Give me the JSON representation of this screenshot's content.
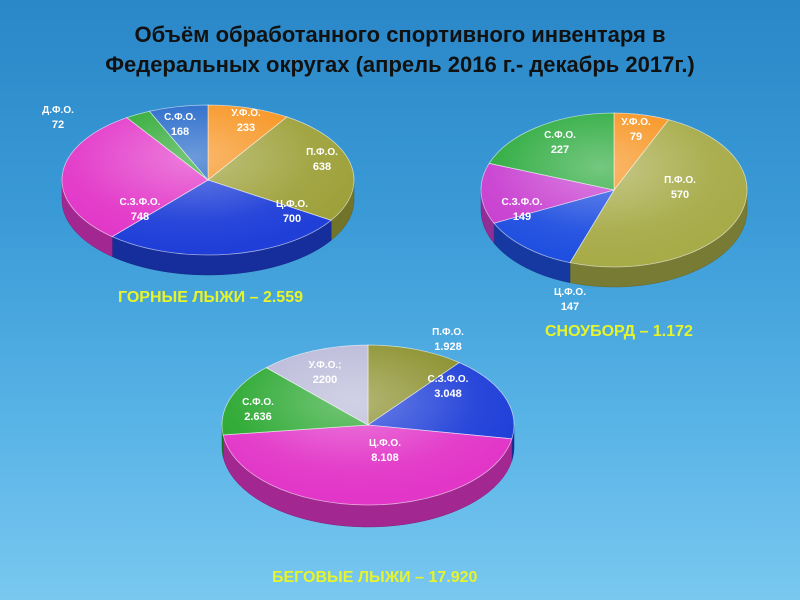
{
  "title_line1": "Объём обработанного спортивного инвентаря в",
  "title_line2": "Федеральных округах (апрель 2016 г.- декабрь 2017г.)",
  "chart_data": [
    {
      "type": "pie",
      "caption": "ГОРНЫЕ ЛЫЖИ – 2.559",
      "slices": [
        {
          "label": "У.Ф.О.",
          "value_text": "233",
          "value": 233,
          "color": "#f7931e"
        },
        {
          "label": "П.Ф.О.",
          "value_text": "638",
          "value": 638,
          "color": "#9ea13a"
        },
        {
          "label": "Ц.Ф.О.",
          "value_text": "700",
          "value": 700,
          "color": "#1f3fd8"
        },
        {
          "label": "С.З.Ф.О.",
          "value_text": "748",
          "value": 748,
          "color": "#e236c8"
        },
        {
          "label": "Д.Ф.О.",
          "value_text": "72",
          "value": 72,
          "color": "#2aa830"
        },
        {
          "label": "С.Ф.О.",
          "value_text": "168",
          "value": 168,
          "color": "#1e64c8"
        }
      ]
    },
    {
      "type": "pie",
      "caption": "СНОУБОРД – 1.172",
      "slices": [
        {
          "label": "У.Ф.О.",
          "value_text": "79",
          "value": 79,
          "color": "#f7931e"
        },
        {
          "label": "П.Ф.О.",
          "value_text": "570",
          "value": 570,
          "color": "#a7ab48"
        },
        {
          "label": "Ц.Ф.О.",
          "value_text": "147",
          "value": 147,
          "color": "#1f4fe0"
        },
        {
          "label": "С.З.Ф.О.",
          "value_text": "149",
          "value": 149,
          "color": "#c83fd0"
        },
        {
          "label": "С.Ф.О.",
          "value_text": "227",
          "value": 227,
          "color": "#2aaa3c"
        }
      ]
    },
    {
      "type": "pie",
      "caption": "БЕГОВЫЕ ЛЫЖИ – 17.920",
      "slices": [
        {
          "label": "П.Ф.О.",
          "value_text": "1.928",
          "value": 1928,
          "color": "#8a8f2a"
        },
        {
          "label": "С.З.Ф.О.",
          "value_text": "3.048",
          "value": 3048,
          "color": "#1f3fd8"
        },
        {
          "label": "Ц.Ф.О.",
          "value_text": "8.108",
          "value": 8108,
          "color": "#e236c8"
        },
        {
          "label": "С.Ф.О.",
          "value_text": "2.636",
          "value": 2636,
          "color": "#2aa830"
        },
        {
          "label": "У.Ф.О.;",
          "value_text": "2200",
          "value": 2200,
          "color": "#b8b8d8"
        }
      ]
    }
  ]
}
